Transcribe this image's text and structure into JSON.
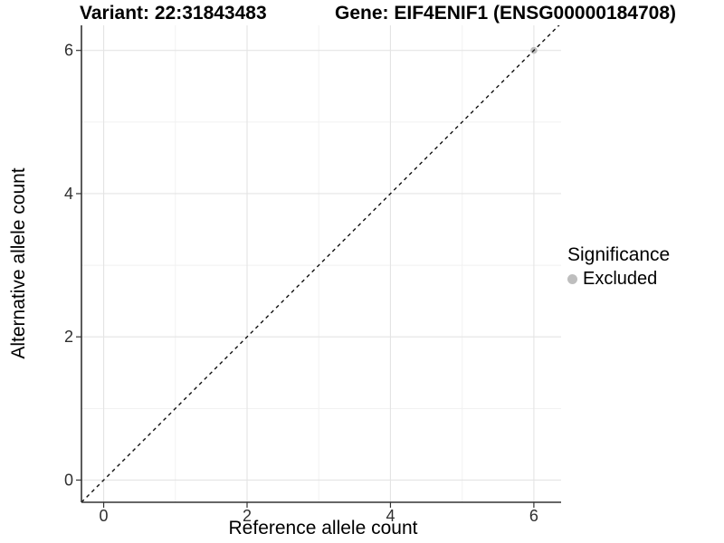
{
  "chart_data": {
    "type": "scatter",
    "titles": {
      "variant": "Variant: 22:31843483",
      "gene": "Gene: EIF4ENIF1 (ENSG00000184708)"
    },
    "xlabel": "Reference allele count",
    "ylabel": "Alternative allele count",
    "xlim": [
      -0.31,
      6.38
    ],
    "ylim": [
      -0.31,
      6.35
    ],
    "x_major_ticks": [
      0,
      2,
      4,
      6
    ],
    "x_minor_ticks": [
      1,
      3,
      5
    ],
    "y_major_ticks": [
      0,
      2,
      4,
      6
    ],
    "y_minor_ticks": [
      1,
      3,
      5
    ],
    "grid": "major+minor",
    "legend_position": "right",
    "series": [
      {
        "name": "Excluded",
        "color": "#bebebe",
        "points": [
          [
            6,
            6
          ]
        ]
      }
    ],
    "reference_line": {
      "kind": "identity",
      "slope": 1,
      "intercept": 0,
      "style": "dashed",
      "color": "#111111"
    },
    "legend": {
      "title": "Significance",
      "entries": [
        {
          "label": "Excluded",
          "color": "#bebebe"
        }
      ]
    },
    "colors": {
      "background": "#ffffff",
      "grid_major": "#e4e4e4",
      "grid_minor": "#f1f1f1",
      "axis": "#333333",
      "tick_text": "#2f2f2f"
    }
  }
}
